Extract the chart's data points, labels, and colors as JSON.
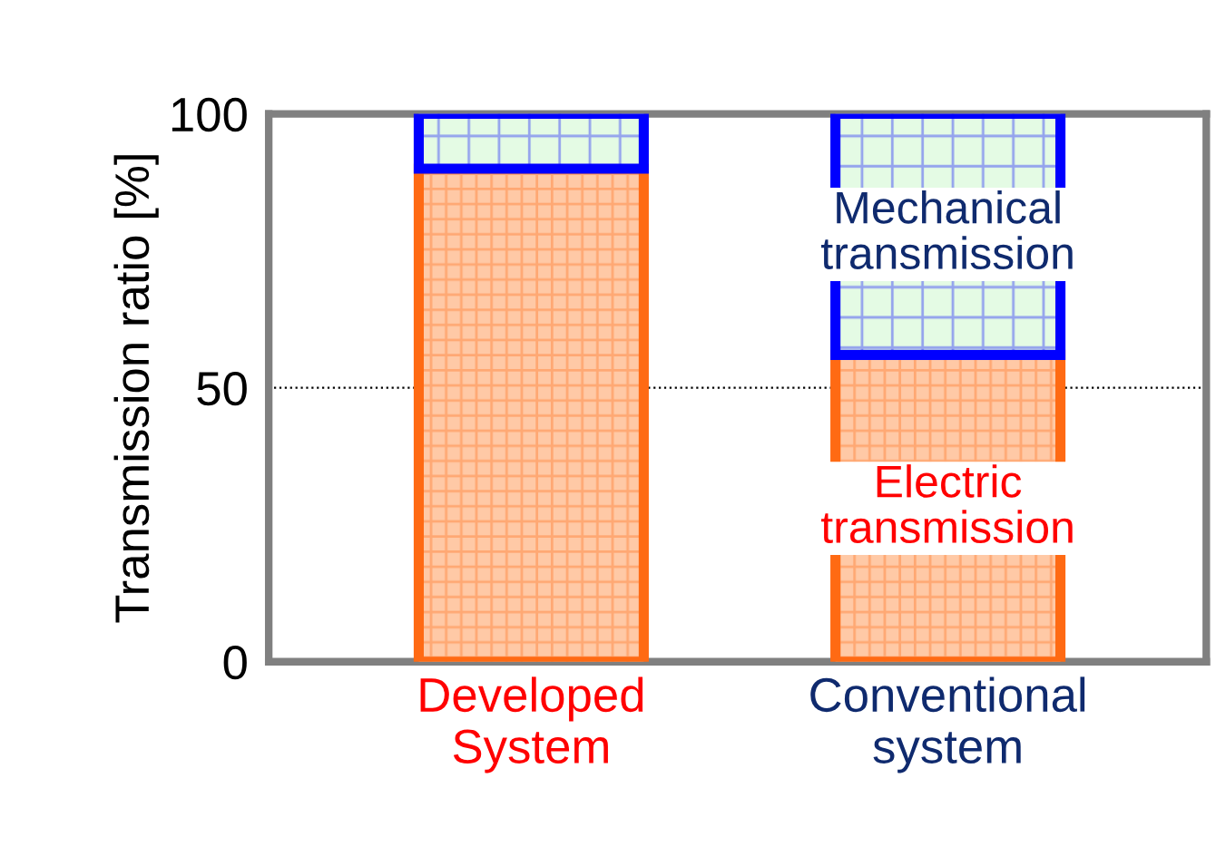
{
  "chart_data": {
    "type": "bar",
    "stacked": true,
    "ylabel": "Transmission ratio [%]",
    "categories": [
      "Developed\nSystem",
      "Conventional\nsystem"
    ],
    "series": [
      {
        "name": "Electric\ntransmission",
        "color": "#ff6a13",
        "values": [
          90,
          56
        ]
      },
      {
        "name": "Mechanical\ntransmission",
        "color": "#0000ff",
        "values": [
          10,
          44
        ]
      }
    ],
    "ylim": [
      0,
      100
    ],
    "yticks": [
      0,
      50,
      100
    ],
    "grid": false,
    "legend": false,
    "ref_lines": [
      {
        "axis": "y",
        "value": 50,
        "color": "#000000",
        "line_style": "dotted"
      }
    ]
  }
}
